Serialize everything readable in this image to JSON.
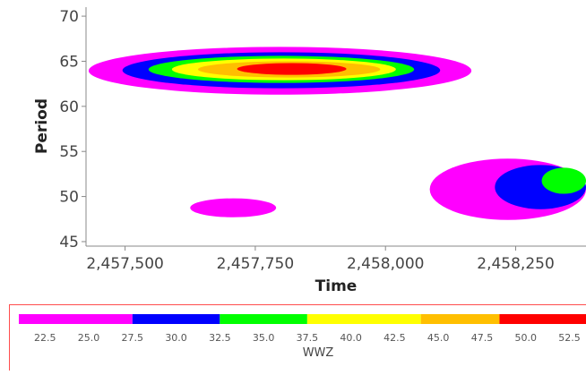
{
  "chart_data": {
    "type": "heatmap",
    "xlabel": "Time",
    "ylabel": "Period",
    "xlim": [
      2457425,
      2458385
    ],
    "ylim": [
      44.5,
      71
    ],
    "x_ticks": [
      "2,457,500",
      "2,457,750",
      "2,458,000",
      "2,458,250"
    ],
    "x_tick_values": [
      2457500,
      2457750,
      2458000,
      2458250
    ],
    "y_ticks": [
      "45",
      "50",
      "55",
      "60",
      "65",
      "70"
    ],
    "y_tick_values": [
      45,
      50,
      55,
      60,
      65,
      70
    ],
    "colorbar": {
      "title": "WWZ",
      "ticks": [
        "22.5",
        "25.0",
        "27.5",
        "30.0",
        "32.5",
        "35.0",
        "37.5",
        "40.0",
        "42.5",
        "45.0",
        "47.5",
        "50.0",
        "52.5"
      ],
      "tick_values": [
        22.5,
        25.0,
        27.5,
        30.0,
        32.5,
        35.0,
        37.5,
        40.0,
        42.5,
        45.0,
        47.5,
        50.0,
        52.5
      ],
      "bands": [
        {
          "from": 21.0,
          "to": 27.5,
          "color": "#ff00ff"
        },
        {
          "from": 27.5,
          "to": 32.5,
          "color": "#0000ff"
        },
        {
          "from": 32.5,
          "to": 37.5,
          "color": "#00ff00"
        },
        {
          "from": 37.5,
          "to": 44.0,
          "color": "#ffff00"
        },
        {
          "from": 44.0,
          "to": 48.5,
          "color": "#ffbf00"
        },
        {
          "from": 48.5,
          "to": 53.5,
          "color": "#ff0000"
        }
      ]
    },
    "regions": [
      {
        "level": ">=22.5",
        "color": "#ff00ff",
        "x": [
          2457430,
          2458165
        ],
        "y": [
          61.3,
          66.6
        ]
      },
      {
        "level": ">=27.5",
        "color": "#0000ff",
        "x": [
          2457495,
          2458105
        ],
        "y": [
          62.0,
          66.0
        ]
      },
      {
        "level": ">=32.5",
        "color": "#00ff00",
        "x": [
          2457545,
          2458055
        ],
        "y": [
          62.6,
          65.6
        ]
      },
      {
        "level": ">=37.5",
        "color": "#ffff00",
        "x": [
          2457590,
          2458020
        ],
        "y": [
          62.9,
          65.3
        ]
      },
      {
        "level": ">=44.0",
        "color": "#ffbf00",
        "x": [
          2457640,
          2457990
        ],
        "y": [
          63.2,
          65.0
        ]
      },
      {
        "level": ">=48.5",
        "color": "#ff0000",
        "x": [
          2457715,
          2457925
        ],
        "y": [
          63.5,
          64.8
        ]
      },
      {
        "level": ">=22.5",
        "color": "#ff00ff",
        "x": [
          2457625,
          2457790
        ],
        "y": [
          47.7,
          49.8
        ]
      },
      {
        "level": ">=22.5",
        "color": "#ff00ff",
        "x": [
          2458085,
          2458385
        ],
        "y": [
          47.4,
          54.2
        ]
      },
      {
        "level": ">=27.5",
        "color": "#0000ff",
        "x": [
          2458210,
          2458385
        ],
        "y": [
          48.6,
          53.5
        ]
      },
      {
        "level": ">=32.5",
        "color": "#00ff00",
        "x": [
          2458300,
          2458385
        ],
        "y": [
          50.3,
          53.2
        ]
      }
    ]
  }
}
